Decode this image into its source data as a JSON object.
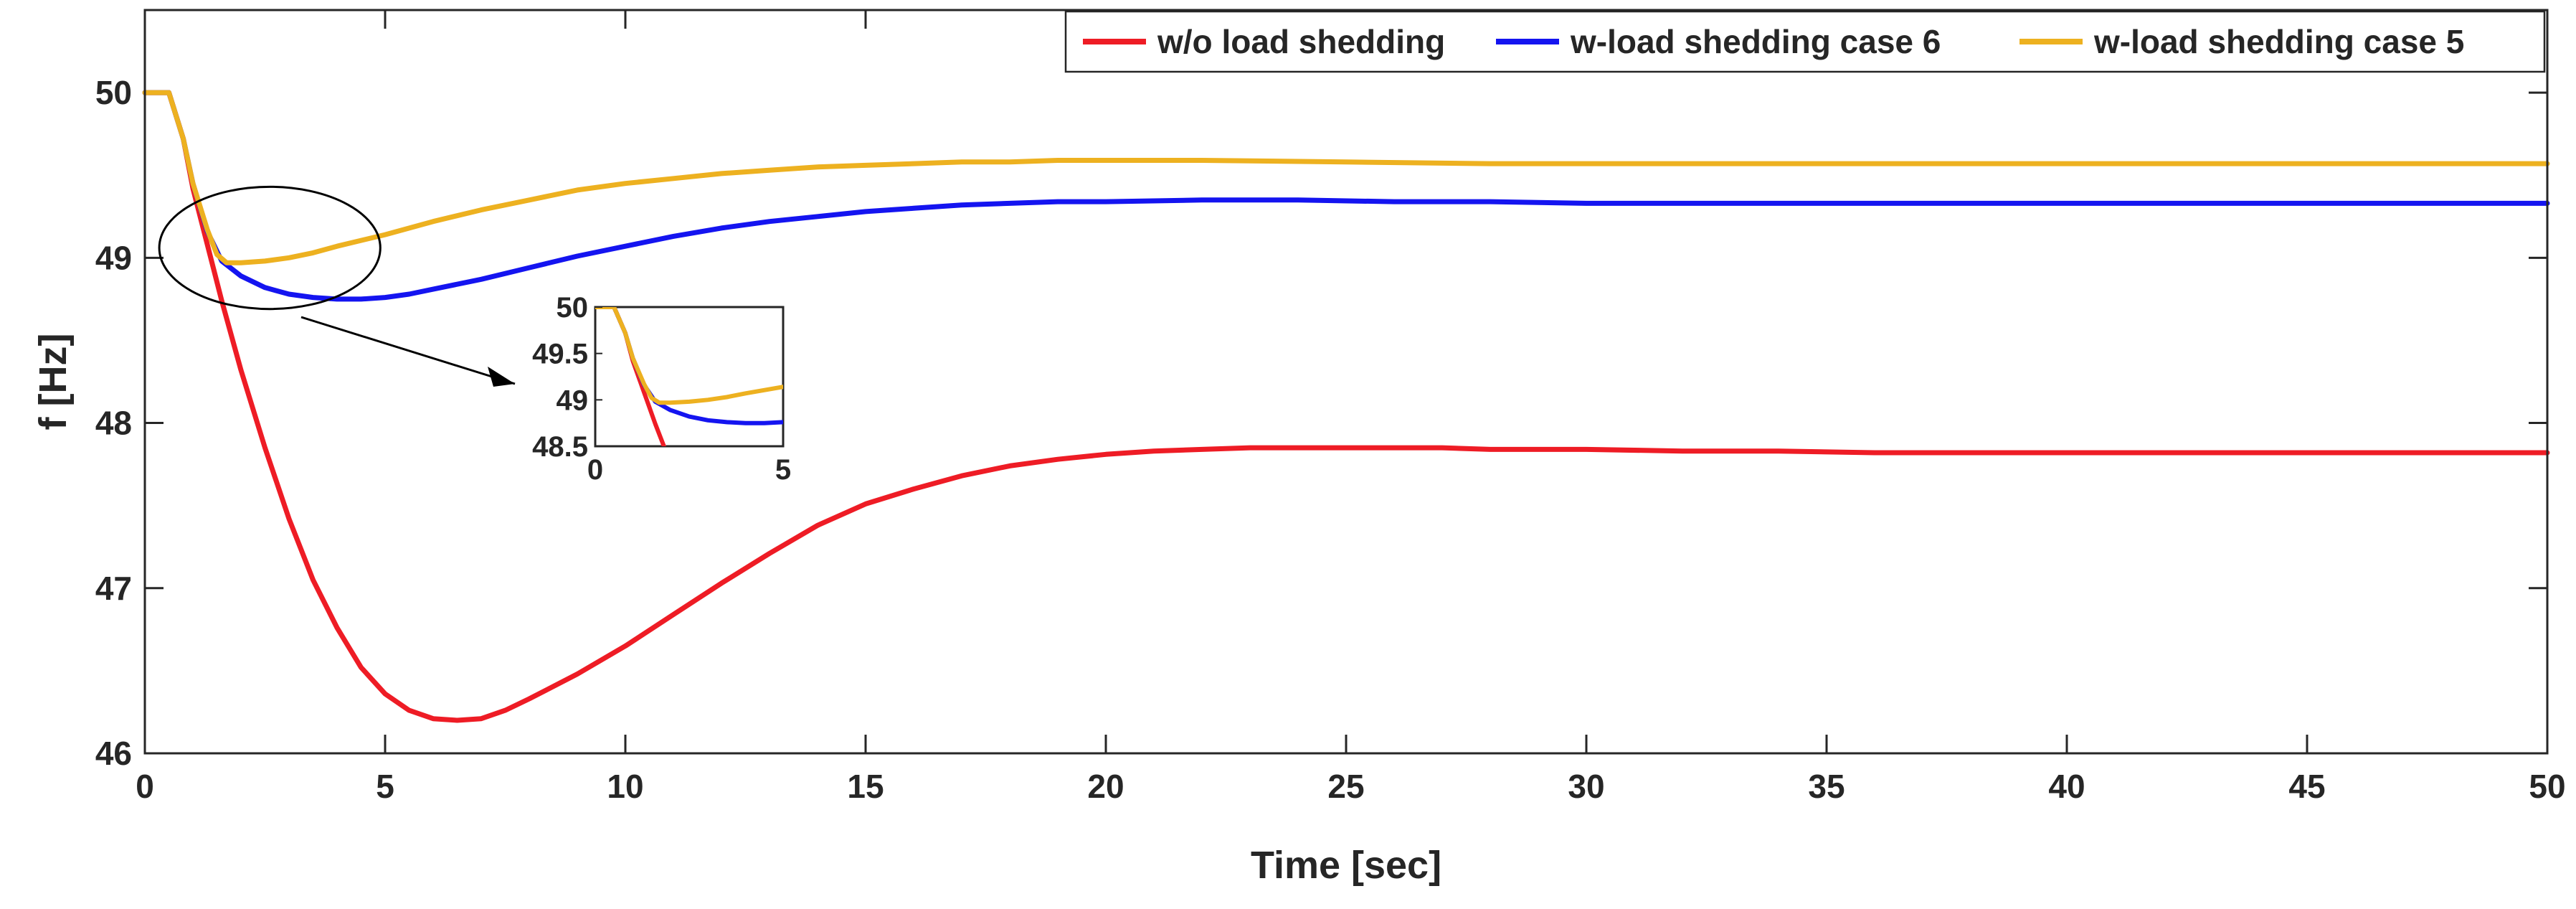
{
  "chart_data": {
    "type": "line",
    "title": "",
    "xlabel": "Time [sec]",
    "ylabel": "f [Hz]",
    "xlim": [
      0,
      50
    ],
    "ylim": [
      46,
      50.5
    ],
    "xticks": [
      0,
      5,
      10,
      15,
      20,
      25,
      30,
      35,
      40,
      45,
      50
    ],
    "yticks": [
      46,
      47,
      48,
      49,
      50
    ],
    "grid": false,
    "legend_position": "top-right",
    "series": [
      {
        "name": "w/o load shedding",
        "color": "#ee1c25",
        "x": [
          0,
          0.5,
          0.8,
          1.0,
          1.3,
          1.6,
          2.0,
          2.5,
          3.0,
          3.5,
          4.0,
          4.5,
          5.0,
          5.5,
          6.0,
          6.5,
          7.0,
          7.5,
          8.0,
          9.0,
          10.0,
          11.0,
          12.0,
          13.0,
          14.0,
          15.0,
          16.0,
          17.0,
          18.0,
          19.0,
          20.0,
          21.0,
          22.0,
          23.0,
          24.0,
          25.0,
          26.0,
          27.0,
          28.0,
          30.0,
          32.0,
          34.0,
          36.0,
          38.0,
          40.0,
          42.0,
          44.0,
          46.0,
          48.0,
          50.0
        ],
        "values": [
          50.0,
          50.0,
          49.72,
          49.42,
          49.08,
          48.74,
          48.32,
          47.85,
          47.42,
          47.05,
          46.76,
          46.52,
          46.36,
          46.26,
          46.21,
          46.2,
          46.21,
          46.26,
          46.33,
          46.48,
          46.65,
          46.84,
          47.03,
          47.21,
          47.38,
          47.51,
          47.6,
          47.68,
          47.74,
          47.78,
          47.81,
          47.83,
          47.84,
          47.85,
          47.85,
          47.85,
          47.85,
          47.85,
          47.84,
          47.84,
          47.83,
          47.83,
          47.82,
          47.82,
          47.82,
          47.82,
          47.82,
          47.82,
          47.82,
          47.82
        ]
      },
      {
        "name": "w-load shedding case 6",
        "color": "#1414f0",
        "x": [
          0,
          0.5,
          0.8,
          1.0,
          1.3,
          1.6,
          2.0,
          2.5,
          3.0,
          3.5,
          4.0,
          4.5,
          5.0,
          5.5,
          6.0,
          7.0,
          8.0,
          9.0,
          10.0,
          11.0,
          12.0,
          13.0,
          14.0,
          15.0,
          16.0,
          17.0,
          18.0,
          19.0,
          20.0,
          22.0,
          24.0,
          26.0,
          28.0,
          30.0,
          35.0,
          40.0,
          45.0,
          50.0
        ],
        "values": [
          50.0,
          50.0,
          49.72,
          49.45,
          49.16,
          48.98,
          48.89,
          48.82,
          48.78,
          48.76,
          48.75,
          48.75,
          48.76,
          48.78,
          48.81,
          48.87,
          48.94,
          49.01,
          49.07,
          49.13,
          49.18,
          49.22,
          49.25,
          49.28,
          49.3,
          49.32,
          49.33,
          49.34,
          49.34,
          49.35,
          49.35,
          49.34,
          49.34,
          49.33,
          49.33,
          49.33,
          49.33,
          49.33
        ]
      },
      {
        "name": "w-load shedding case 5",
        "color": "#edb120",
        "x": [
          0,
          0.5,
          0.8,
          1.0,
          1.3,
          1.5,
          1.7,
          2.0,
          2.5,
          3.0,
          3.5,
          4.0,
          5.0,
          6.0,
          7.0,
          8.0,
          9.0,
          10.0,
          11.0,
          12.0,
          13.0,
          14.0,
          15.0,
          16.0,
          17.0,
          18.0,
          19.0,
          20.0,
          22.0,
          25.0,
          28.0,
          30.0,
          35.0,
          40.0,
          45.0,
          50.0
        ],
        "values": [
          50.0,
          50.0,
          49.72,
          49.45,
          49.17,
          49.02,
          48.97,
          48.97,
          48.98,
          49.0,
          49.03,
          49.07,
          49.14,
          49.22,
          49.29,
          49.35,
          49.41,
          49.45,
          49.48,
          49.51,
          49.53,
          49.55,
          49.56,
          49.57,
          49.58,
          49.58,
          49.59,
          49.59,
          49.59,
          49.58,
          49.57,
          49.57,
          49.57,
          49.57,
          49.57,
          49.57
        ]
      }
    ],
    "annotations": [
      {
        "type": "ellipse",
        "center": [
          2.6,
          49.06
        ],
        "radius": [
          4.6,
          0.37
        ],
        "arrow_to": "inset"
      }
    ],
    "inset": {
      "xlim": [
        0,
        5
      ],
      "ylim": [
        48.5,
        50
      ],
      "xticks": [
        0,
        5
      ],
      "yticks": [
        48.5,
        49,
        49.5,
        50
      ],
      "ytick_labels": [
        "48.5",
        "49",
        "49.5",
        "50"
      ],
      "xtick_labels": [
        "0",
        "5"
      ]
    }
  }
}
